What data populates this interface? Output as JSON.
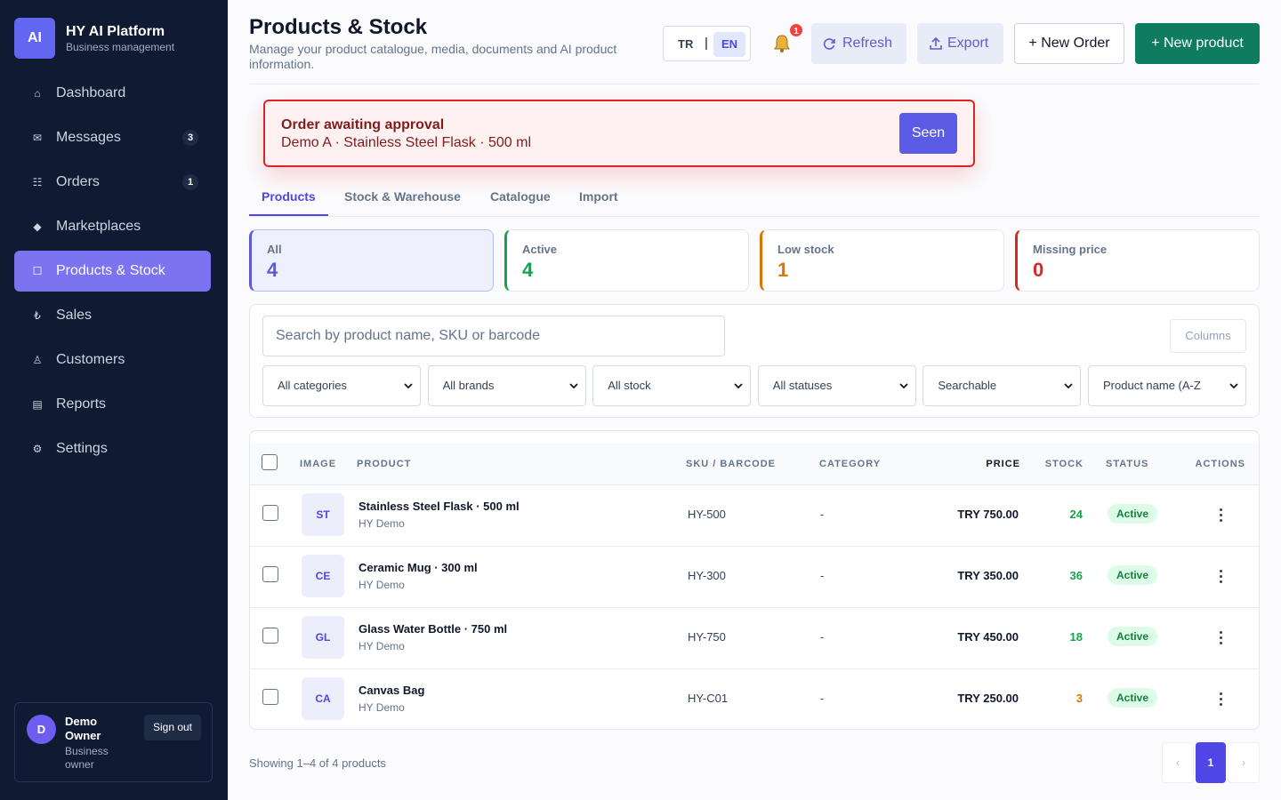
{
  "sidebar": {
    "logo": "AI",
    "title": "HY AI Platform",
    "subtitle": "Business management",
    "nav": [
      {
        "icon": "⌂",
        "label": "Dashboard"
      },
      {
        "icon": "✉",
        "label": "Messages",
        "badge": 3
      },
      {
        "icon": "☷",
        "label": "Orders",
        "badge": 1
      },
      {
        "icon": "◆",
        "label": "Marketplaces"
      },
      {
        "icon": "☐",
        "label": "Products & Stock",
        "active": true
      },
      {
        "icon": "₺",
        "label": "Sales"
      },
      {
        "icon": "♙",
        "label": "Customers"
      },
      {
        "icon": "▤",
        "label": "Reports"
      },
      {
        "icon": "⚙",
        "label": "Settings"
      }
    ],
    "user": {
      "avatar": "D",
      "name": "Demo Owner",
      "role": "Business owner",
      "signout": "Sign out"
    }
  },
  "header": {
    "title": "Products & Stock",
    "subtitle": "Manage your product catalogue, media, documents and AI product information.",
    "lang": [
      "TR",
      "|",
      "EN"
    ],
    "notifications": 1,
    "buttons": [
      "Refresh",
      "Export",
      "+ New Order",
      "+ New product"
    ]
  },
  "alert": {
    "title": "Order awaiting approval",
    "text": "Demo A · Stainless Steel Flask · 500 ml",
    "button": "Seen"
  },
  "tabs": [
    {
      "label": "Products",
      "active": true
    },
    {
      "label": "Stock & Warehouse"
    },
    {
      "label": "Catalogue"
    },
    {
      "label": "Import"
    }
  ],
  "stats": [
    {
      "label": "All",
      "value": 4,
      "color": "#5b5bd6"
    },
    {
      "label": "Active",
      "value": 4,
      "color": "#16a34a"
    },
    {
      "label": "Low stock",
      "value": 1,
      "color": "#d97706"
    },
    {
      "label": "Missing price",
      "value": 0,
      "color": "#dc2626"
    }
  ],
  "filters": {
    "search_placeholder": "Search by product name, SKU or barcode",
    "columns": "Columns",
    "selects": [
      "All categories",
      "All brands",
      "All stock",
      "All statuses",
      "Searchable",
      "Product name (A-Z"
    ]
  },
  "table": {
    "headers": [
      "IMAGE",
      "PRODUCT",
      "SKU / BARCODE",
      "CATEGORY",
      "PRICE",
      "STOCK",
      "STATUS",
      "ACTIONS"
    ],
    "rows": [
      {
        "initials": "ST",
        "name": "Stainless Steel Flask · 500 ml",
        "brand": "HY Demo",
        "sku": "HY-500",
        "category": "-",
        "price": "TRY 750.00",
        "stock": 24,
        "stock_color": "#16a34a",
        "status": "Active"
      },
      {
        "initials": "CE",
        "name": "Ceramic Mug · 300 ml",
        "brand": "HY Demo",
        "sku": "HY-300",
        "category": "-",
        "price": "TRY 350.00",
        "stock": 36,
        "stock_color": "#16a34a",
        "status": "Active"
      },
      {
        "initials": "GL",
        "name": "Glass Water Bottle · 750 ml",
        "brand": "HY Demo",
        "sku": "HY-750",
        "category": "-",
        "price": "TRY 450.00",
        "stock": 18,
        "stock_color": "#16a34a",
        "status": "Active"
      },
      {
        "initials": "CA",
        "name": "Canvas Bag",
        "brand": "HY Demo",
        "sku": "HY-C01",
        "category": "-",
        "price": "TRY 250.00",
        "stock": 3,
        "stock_color": "#d97706",
        "status": "Active"
      }
    ]
  },
  "footer": {
    "summary": "Showing 1–4 of 4 products",
    "prev": "‹",
    "page": 1,
    "next": "›"
  }
}
